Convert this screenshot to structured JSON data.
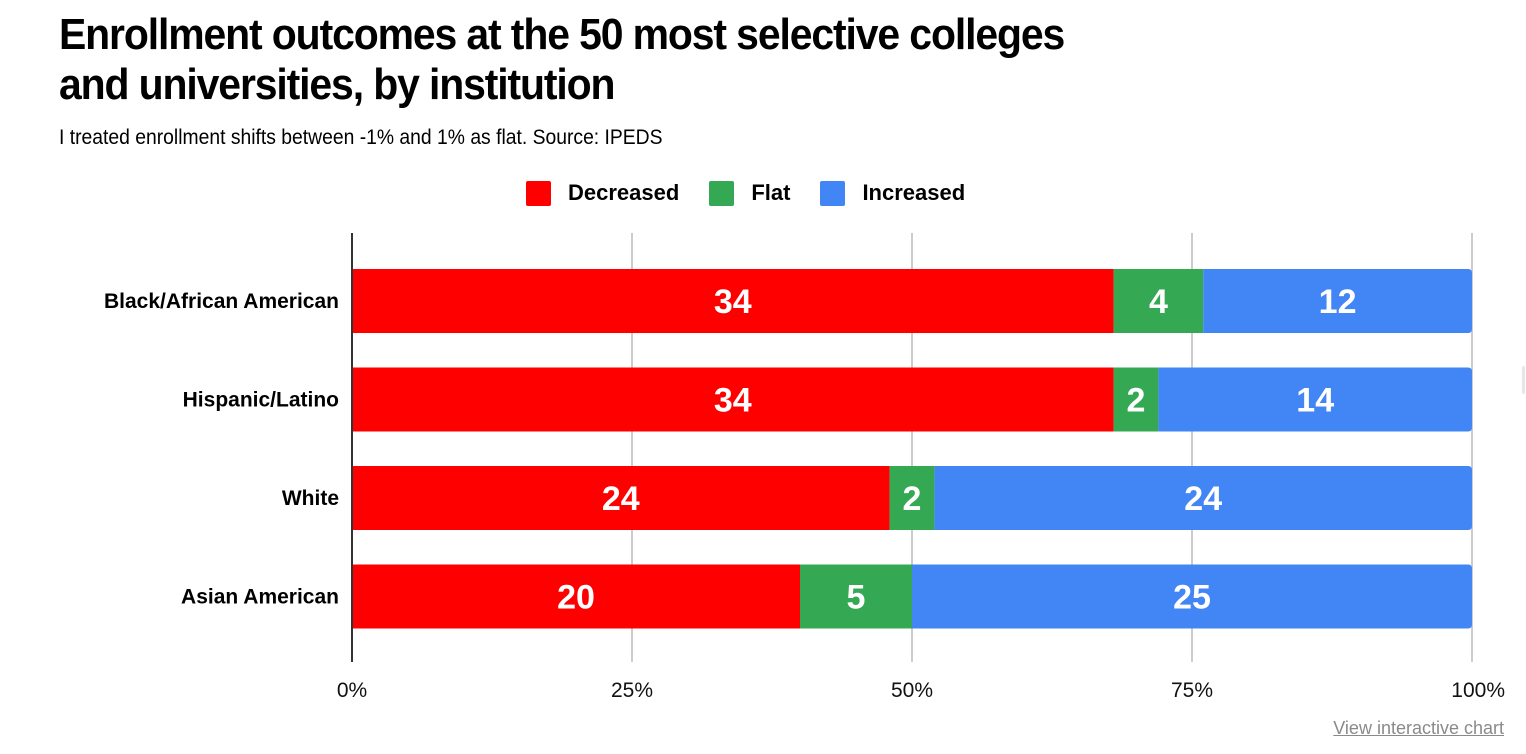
{
  "chart_data": {
    "type": "bar",
    "orientation": "horizontal",
    "stacked": "percent",
    "title": "Enrollment outcomes at the 50 most selective colleges and universities, by institution",
    "title_lines": [
      "Enrollment outcomes at the 50 most selective colleges",
      "and universities, by institution"
    ],
    "subtitle": "I treated enrollment shifts between -1% and 1% as flat. Source: IPEDS",
    "categories": [
      "Black/African American",
      "Hispanic/Latino",
      "White",
      "Asian American"
    ],
    "series": [
      {
        "name": "Decreased",
        "color": "#ff0000",
        "values": [
          34,
          34,
          24,
          20
        ]
      },
      {
        "name": "Flat",
        "color": "#34a853",
        "values": [
          4,
          2,
          2,
          5
        ]
      },
      {
        "name": "Increased",
        "color": "#4285f4",
        "values": [
          12,
          14,
          24,
          25
        ]
      }
    ],
    "xlim": [
      0,
      100
    ],
    "x_ticks": [
      0,
      25,
      50,
      75,
      100
    ],
    "x_tick_labels": [
      "0%",
      "25%",
      "50%",
      "75%",
      "100%"
    ],
    "xlabel": "",
    "ylabel": "",
    "grid": true,
    "legend_position": "top",
    "data_labels": true
  },
  "footer": {
    "link_label": "View interactive chart"
  }
}
